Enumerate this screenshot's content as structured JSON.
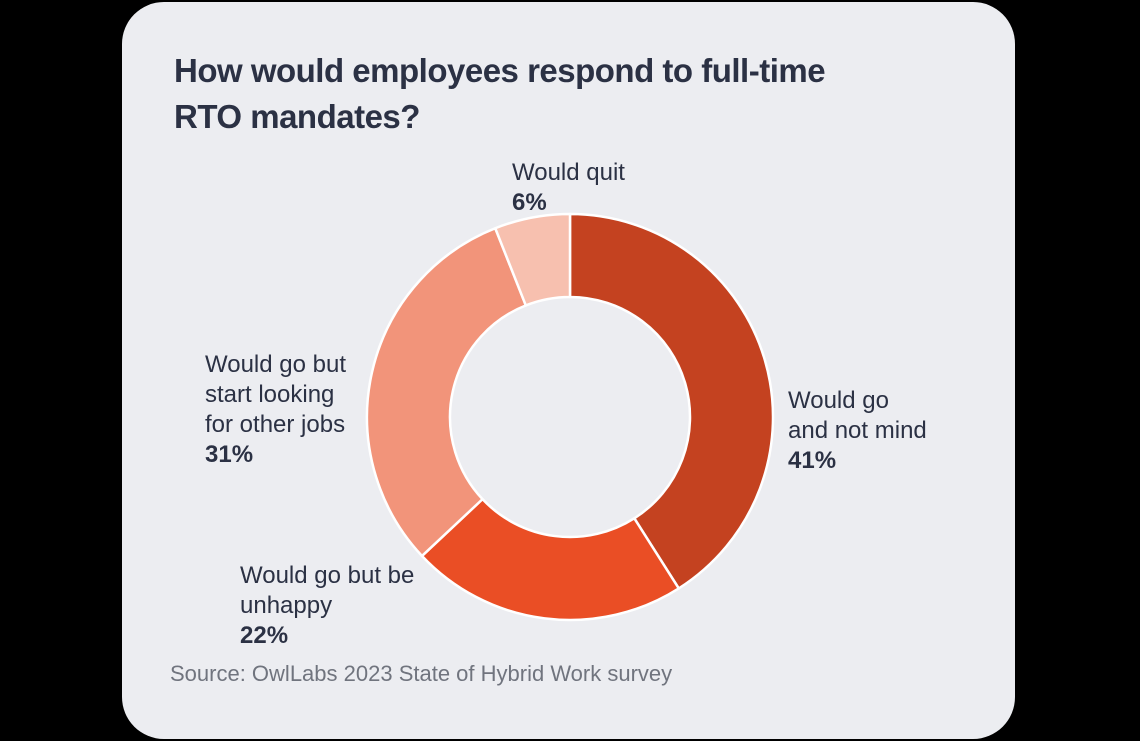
{
  "card": {
    "title_lines": [
      "How would employees respond to full-time",
      "RTO mandates?"
    ],
    "source": "Source: OwlLabs 2023 State of Hybrid Work survey",
    "background": "#ECEDF1",
    "page_background": "#000000",
    "title_color": "#2B3144",
    "label_color": "#2B3144",
    "source_color": "#70747E"
  },
  "chart_data": {
    "type": "pie",
    "subtype": "donut",
    "title": "How would employees respond to full-time RTO mandates?",
    "source": "Source: OwlLabs 2023 State of Hybrid Work survey",
    "categories": [
      "Would go and not mind",
      "Would go but be unhappy",
      "Would go but start looking for other jobs",
      "Would quit"
    ],
    "values": [
      41,
      22,
      31,
      6
    ],
    "unit": "%",
    "colors": [
      "#C44220",
      "#EA4E25",
      "#F2947A",
      "#F7C0AF"
    ],
    "start_angle_deg": 0,
    "direction": "clockwise",
    "inner_radius_ratio": 0.59,
    "divider_color": "#FFFFFF",
    "legend_position": "labels-around-donut",
    "labels": [
      {
        "lines": [
          "Would quit"
        ],
        "value": "6%"
      },
      {
        "lines": [
          "Would go",
          "and not mind"
        ],
        "value": "41%"
      },
      {
        "lines": [
          "Would go but",
          "start looking",
          "for other jobs"
        ],
        "value": "31%"
      },
      {
        "lines": [
          "Would go but be",
          "unhappy"
        ],
        "value": "22%"
      }
    ]
  }
}
